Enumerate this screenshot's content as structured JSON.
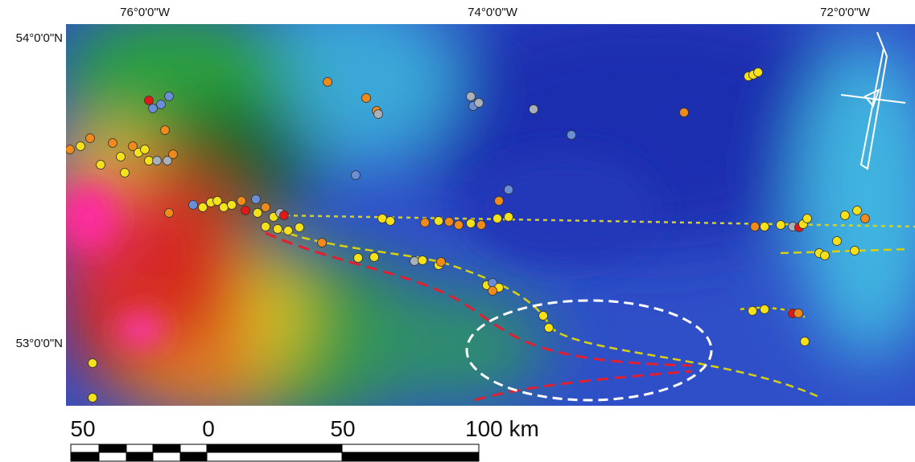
{
  "map": {
    "lon_labels": [
      "76°0'0\"W",
      "74°0'0\"W",
      "72°0'0\"W"
    ],
    "lat_labels": [
      "54°0'0\"N",
      "53°0'0\"N"
    ],
    "scale_bar": {
      "labels": [
        "50",
        "0",
        "50",
        "100 km"
      ]
    }
  }
}
